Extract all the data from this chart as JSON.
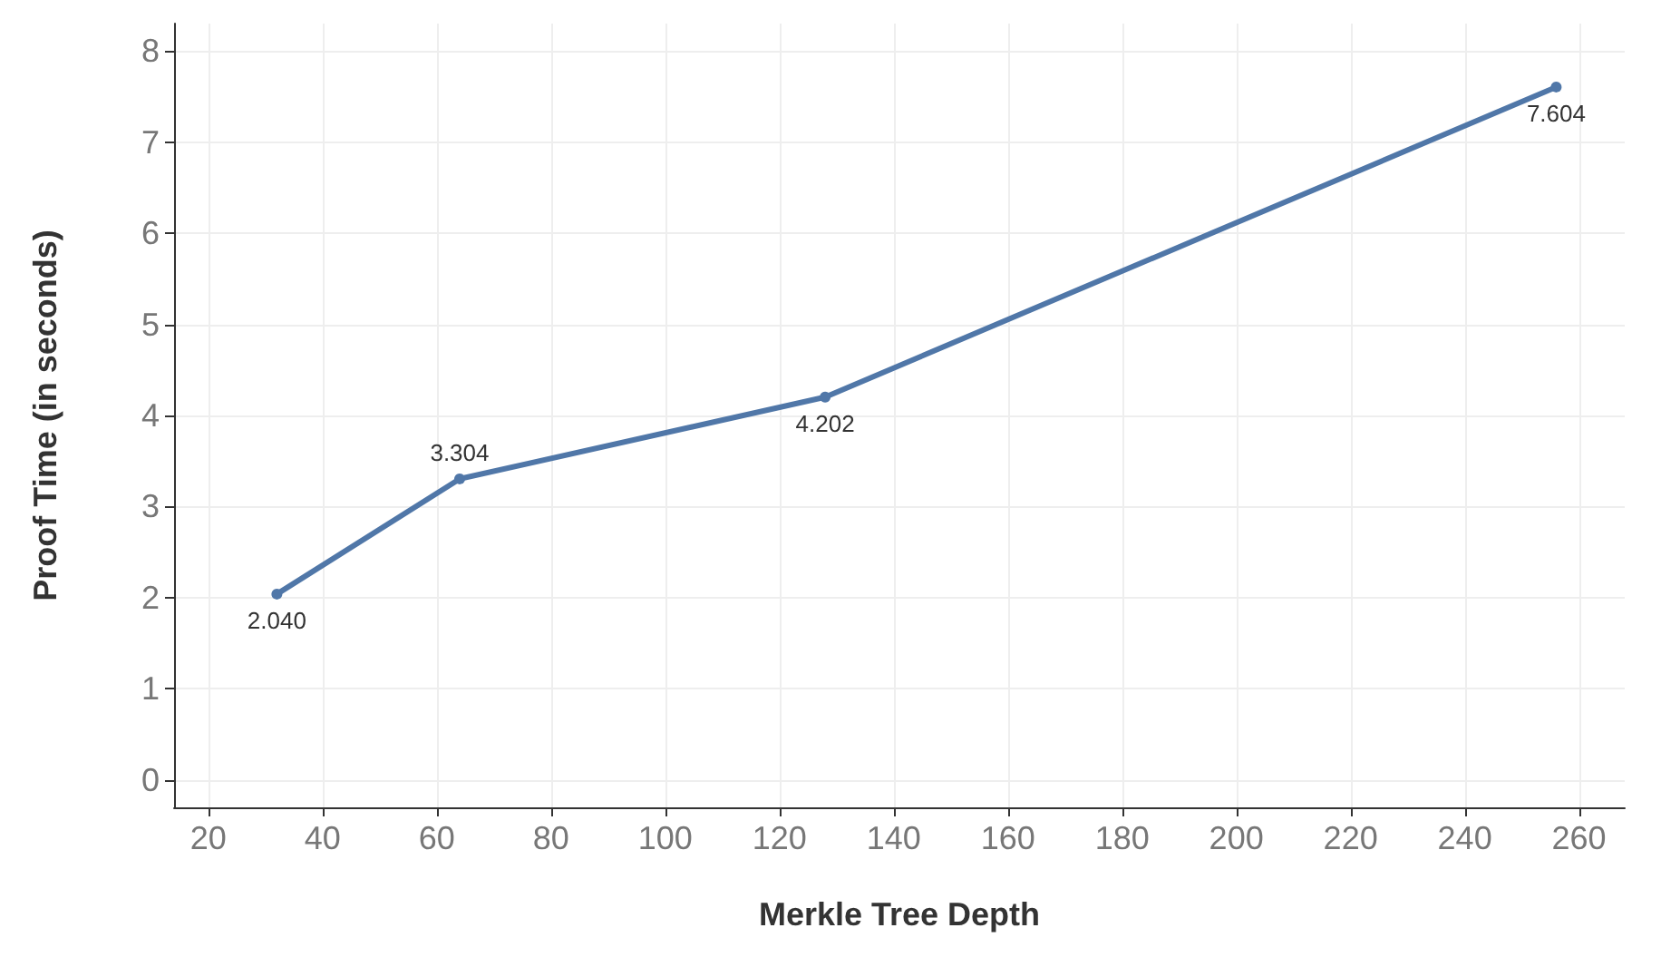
{
  "chart_data": {
    "type": "line",
    "xlabel": "Merkle Tree Depth",
    "ylabel": "Proof Time (in seconds)",
    "x": [
      32,
      64,
      128,
      256
    ],
    "series": [
      {
        "color": "#5077a8",
        "values": [
          2.04,
          3.304,
          4.202,
          7.604
        ],
        "value_labels": [
          "2.040",
          "3.304",
          "4.202",
          "7.604"
        ]
      }
    ],
    "xlim": [
      14,
      268
    ],
    "xticks": [
      20,
      40,
      60,
      80,
      100,
      120,
      140,
      160,
      180,
      200,
      220,
      240,
      260
    ],
    "ylim": [
      -0.3,
      8.3
    ],
    "yticks": [
      0,
      1,
      2,
      3,
      4,
      5,
      6,
      7,
      8
    ],
    "grid": true,
    "marker": "circle",
    "line_style": "solid"
  }
}
